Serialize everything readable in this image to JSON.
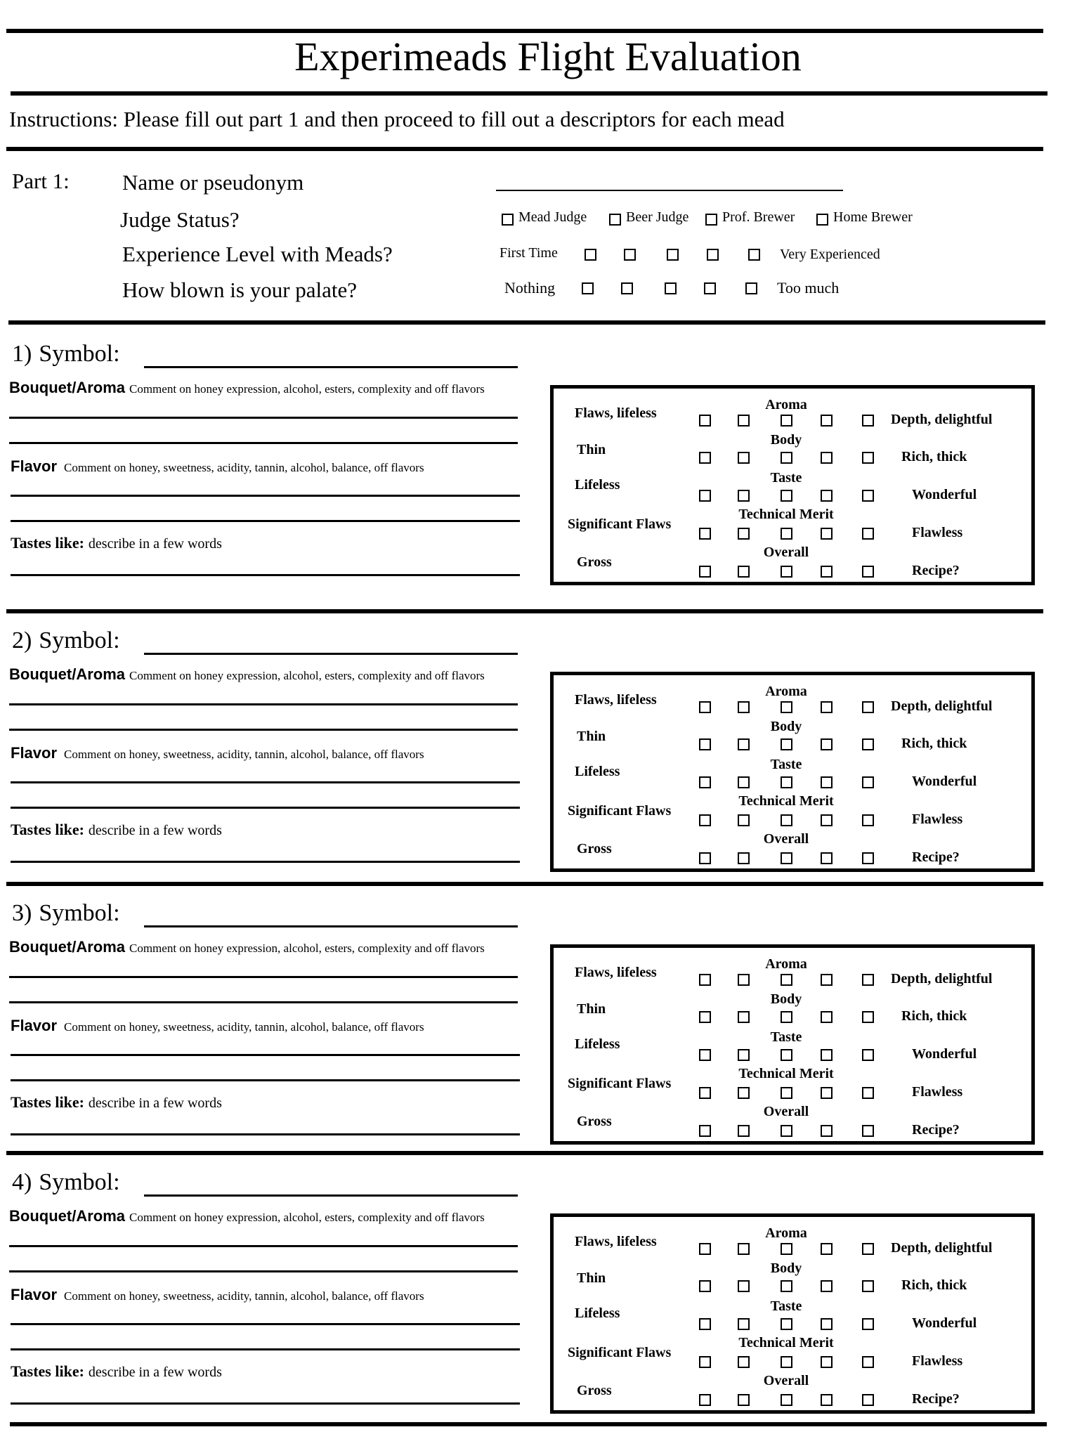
{
  "title": "Experimeads Flight Evaluation",
  "instructions": "Instructions: Please fill out part 1 and then proceed to fill out a descriptors for each mead",
  "part1": {
    "label": "Part 1:",
    "name_label": "Name or pseudonym",
    "judge_label": "Judge Status?",
    "judge_options": [
      "Mead Judge",
      "Beer Judge",
      "Prof. Brewer",
      "Home Brewer"
    ],
    "experience_label": "Experience Level with Meads?",
    "experience_low": "First Time",
    "experience_high": "Very Experienced",
    "palate_label": "How blown is your palate?",
    "palate_low": "Nothing",
    "palate_high": "Too much"
  },
  "section_template": {
    "symbol_label": "Symbol:",
    "bouquet_label": "Bouquet/Aroma",
    "bouquet_hint": "Comment on honey expression, alcohol, esters, complexity and off flavors",
    "flavor_label": "Flavor",
    "flavor_hint": "Comment on honey, sweetness, acidity, tannin, alcohol, balance, off flavors",
    "tastes_label": "Tastes like:",
    "tastes_hint": "describe in a few words",
    "scales": [
      {
        "header": "Aroma",
        "low": "Flaws, lifeless",
        "high": "Depth, delightful"
      },
      {
        "header": "Body",
        "low": "Thin",
        "high": "Rich, thick"
      },
      {
        "header": "Taste",
        "low": "Lifeless",
        "high": "Wonderful"
      },
      {
        "header": "Technical Merit",
        "low": "Significant Flaws",
        "high": "Flawless"
      },
      {
        "header": "Overall",
        "low": "Gross",
        "high": "Recipe?"
      }
    ]
  },
  "sections": [
    {
      "number": "1)"
    },
    {
      "number": "2)"
    },
    {
      "number": "3)"
    },
    {
      "number": "4)"
    }
  ]
}
